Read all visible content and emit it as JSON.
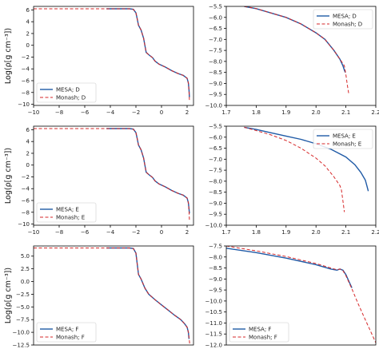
{
  "colors": {
    "mesa": "#1f5aa6",
    "monash": "#d62728",
    "axis": "#000000"
  },
  "chart_data": [
    {
      "type": "line",
      "panel": "D-left",
      "ylabel": "Log(ρ[g cm⁻³])",
      "xlim": [
        -10,
        2.5
      ],
      "ylim": [
        -10.2,
        6.6
      ],
      "xticks": [
        -10,
        -8,
        -6,
        -4,
        -2,
        0,
        2
      ],
      "xtick_labels": [
        "−10",
        "−8",
        "−6",
        "−4",
        "−2",
        "0",
        "2"
      ],
      "yticks": [
        -10,
        -8,
        -6,
        -4,
        -2,
        0,
        2,
        4,
        6
      ],
      "ytick_labels": [
        "−10",
        "−8",
        "−6",
        "−4",
        "−2",
        "0",
        "2",
        "4",
        "6"
      ],
      "legend_position": "lower-left",
      "series": [
        {
          "name": "MESA; D",
          "style": "solid",
          "x": [
            -4.3,
            -2.5,
            -2.2,
            -2.0,
            -1.9,
            -1.8,
            -1.6,
            -1.4,
            -1.2,
            -1.0,
            -0.7,
            -0.5,
            -0.2,
            0.3,
            0.8,
            1.3,
            1.7,
            2.0,
            2.1,
            2.15,
            2.18
          ],
          "y": [
            6.2,
            6.2,
            6.1,
            5.5,
            4.5,
            3.4,
            2.6,
            1.2,
            -1.2,
            -1.6,
            -2.1,
            -2.7,
            -3.2,
            -3.7,
            -4.3,
            -4.8,
            -5.1,
            -5.6,
            -6.4,
            -7.6,
            -8.8
          ]
        },
        {
          "name": "Monash; D",
          "style": "dashed",
          "x": [
            -10,
            -4.3,
            -2.5,
            -2.2,
            -2.0,
            -1.9,
            -1.8,
            -1.6,
            -1.4,
            -1.2,
            -1.0,
            -0.7,
            -0.5,
            -0.2,
            0.3,
            0.8,
            1.3,
            1.7,
            2.0,
            2.1,
            2.15,
            2.18
          ],
          "y": [
            6.2,
            6.2,
            6.2,
            6.1,
            5.5,
            4.5,
            3.4,
            2.6,
            1.2,
            -1.2,
            -1.6,
            -2.1,
            -2.7,
            -3.2,
            -3.7,
            -4.3,
            -4.8,
            -5.1,
            -5.6,
            -6.4,
            -7.8,
            -9.3
          ]
        }
      ]
    },
    {
      "type": "line",
      "panel": "D-right",
      "xlim": [
        1.7,
        2.2
      ],
      "ylim": [
        -10.0,
        -5.5
      ],
      "xticks": [
        1.7,
        1.8,
        1.9,
        2.0,
        2.1,
        2.2
      ],
      "xtick_labels": [
        "1.7",
        "1.8",
        "1.9",
        "2.0",
        "2.1",
        "2.2"
      ],
      "yticks": [
        -10.0,
        -9.5,
        -9.0,
        -8.5,
        -8.0,
        -7.5,
        -7.0,
        -6.5,
        -6.0,
        -5.5
      ],
      "ytick_labels": [
        "−10.0",
        "−9.5",
        "−9.0",
        "−8.5",
        "−8.0",
        "−7.5",
        "−7.0",
        "−6.5",
        "−6.0",
        "−5.5"
      ],
      "legend_position": "top-right",
      "series": [
        {
          "name": "MESA; D",
          "style": "solid",
          "x": [
            1.76,
            1.8,
            1.85,
            1.9,
            1.95,
            2.0,
            2.03,
            2.06,
            2.08,
            2.09,
            2.095,
            2.098
          ],
          "y": [
            -5.5,
            -5.6,
            -5.8,
            -6.0,
            -6.3,
            -6.7,
            -7.0,
            -7.5,
            -7.9,
            -8.2,
            -8.4,
            -8.5
          ]
        },
        {
          "name": "Monash; D",
          "style": "dashed",
          "x": [
            1.76,
            1.8,
            1.85,
            1.9,
            1.95,
            2.0,
            2.03,
            2.06,
            2.08,
            2.09,
            2.095,
            2.1,
            2.105,
            2.11
          ],
          "y": [
            -5.5,
            -5.6,
            -5.8,
            -6.0,
            -6.3,
            -6.7,
            -7.0,
            -7.5,
            -7.9,
            -8.1,
            -8.2,
            -8.6,
            -9.1,
            -9.5
          ]
        }
      ]
    },
    {
      "type": "line",
      "panel": "E-left",
      "ylabel": "Log(ρ[g cm⁻³])",
      "xlim": [
        -10,
        2.5
      ],
      "ylim": [
        -10.2,
        6.6
      ],
      "xticks": [
        -10,
        -8,
        -6,
        -4,
        -2,
        0,
        2
      ],
      "xtick_labels": [
        "−10",
        "−8",
        "−6",
        "−4",
        "−2",
        "0",
        "2"
      ],
      "yticks": [
        -10,
        -8,
        -6,
        -4,
        -2,
        0,
        2,
        4,
        6
      ],
      "ytick_labels": [
        "−10",
        "−8",
        "−6",
        "−4",
        "−2",
        "0",
        "2",
        "4",
        "6"
      ],
      "legend_position": "lower-left",
      "series": [
        {
          "name": "MESA; E",
          "style": "solid",
          "x": [
            -4.3,
            -2.5,
            -2.2,
            -2.0,
            -1.9,
            -1.8,
            -1.6,
            -1.4,
            -1.2,
            -1.0,
            -0.7,
            -0.5,
            -0.2,
            0.3,
            0.8,
            1.3,
            1.7,
            2.0,
            2.1,
            2.15,
            2.18
          ],
          "y": [
            6.2,
            6.2,
            6.1,
            5.5,
            4.5,
            3.4,
            2.6,
            1.2,
            -1.2,
            -1.6,
            -2.1,
            -2.7,
            -3.2,
            -3.7,
            -4.3,
            -4.8,
            -5.1,
            -5.6,
            -6.4,
            -7.4,
            -8.2
          ]
        },
        {
          "name": "Monash; E",
          "style": "dashed",
          "x": [
            -10,
            -4.3,
            -2.5,
            -2.2,
            -2.0,
            -1.9,
            -1.8,
            -1.6,
            -1.4,
            -1.2,
            -1.0,
            -0.7,
            -0.5,
            -0.2,
            0.3,
            0.8,
            1.3,
            1.7,
            2.0,
            2.1,
            2.15,
            2.18
          ],
          "y": [
            6.2,
            6.2,
            6.2,
            6.1,
            5.5,
            4.5,
            3.4,
            2.6,
            1.2,
            -1.2,
            -1.6,
            -2.1,
            -2.7,
            -3.2,
            -3.7,
            -4.3,
            -4.8,
            -5.1,
            -5.6,
            -6.4,
            -7.8,
            -9.3
          ]
        }
      ]
    },
    {
      "type": "line",
      "panel": "E-right",
      "xlim": [
        1.7,
        2.2
      ],
      "ylim": [
        -10.0,
        -5.5
      ],
      "xticks": [
        1.7,
        1.8,
        1.9,
        2.0,
        2.1,
        2.2
      ],
      "xtick_labels": [
        "1.7",
        "1.8",
        "1.9",
        "2.0",
        "2.1",
        "2.2"
      ],
      "yticks": [
        -10.0,
        -9.5,
        -9.0,
        -8.5,
        -8.0,
        -7.5,
        -7.0,
        -6.5,
        -6.0,
        -5.5
      ],
      "ytick_labels": [
        "−10.0",
        "−9.5",
        "−9.0",
        "−8.5",
        "−8.0",
        "−7.5",
        "−7.0",
        "−6.5",
        "−6.0",
        "−5.5"
      ],
      "legend_position": "top-right",
      "series": [
        {
          "name": "MESA; E",
          "style": "solid",
          "x": [
            1.76,
            1.8,
            1.85,
            1.9,
            1.95,
            2.0,
            2.05,
            2.1,
            2.13,
            2.15,
            2.165,
            2.17,
            2.175
          ],
          "y": [
            -5.55,
            -5.65,
            -5.8,
            -5.95,
            -6.1,
            -6.3,
            -6.55,
            -6.9,
            -7.25,
            -7.6,
            -7.95,
            -8.2,
            -8.45
          ]
        },
        {
          "name": "Monash; E",
          "style": "dashed",
          "x": [
            1.76,
            1.8,
            1.85,
            1.9,
            1.95,
            2.0,
            2.03,
            2.06,
            2.08,
            2.085,
            2.09,
            2.095
          ],
          "y": [
            -5.55,
            -5.7,
            -5.9,
            -6.15,
            -6.5,
            -6.95,
            -7.3,
            -7.8,
            -8.2,
            -8.4,
            -8.9,
            -9.4
          ]
        }
      ]
    },
    {
      "type": "line",
      "panel": "F-left",
      "ylabel": "Log(ρ[g cm⁻³])",
      "xlim": [
        -10,
        2.5
      ],
      "ylim": [
        -12.5,
        7.0
      ],
      "yticks": [
        -12.5,
        -10.0,
        -7.5,
        -5.0,
        -2.5,
        0.0,
        2.5,
        5.0
      ],
      "ytick_labels": [
        "−12.5",
        "−10.0",
        "−7.5",
        "−5.0",
        "−2.5",
        "0.0",
        "2.5",
        "5.0"
      ],
      "legend_position": "lower-left",
      "series": [
        {
          "name": "MESA; F",
          "style": "solid",
          "x": [
            -4.3,
            -2.5,
            -2.2,
            -2.0,
            -1.9,
            -1.8,
            -1.6,
            -1.3,
            -1.0,
            -0.5,
            0.0,
            0.5,
            1.0,
            1.5,
            1.8,
            2.0,
            2.1,
            2.15
          ],
          "y": [
            6.6,
            6.6,
            6.5,
            5.6,
            3.5,
            1.4,
            0.5,
            -1.3,
            -2.5,
            -3.6,
            -4.6,
            -5.6,
            -6.6,
            -7.5,
            -8.3,
            -9.0,
            -10.0,
            -11.3
          ]
        },
        {
          "name": "Monash; F",
          "style": "dashed",
          "x": [
            -10,
            -4.3,
            -2.5,
            -2.2,
            -2.0,
            -1.9,
            -1.8,
            -1.6,
            -1.3,
            -1.0,
            -0.5,
            0.0,
            0.5,
            1.0,
            1.5,
            1.8,
            2.0,
            2.1,
            2.15,
            2.2
          ],
          "y": [
            6.6,
            6.6,
            6.6,
            6.5,
            5.6,
            3.5,
            1.4,
            0.5,
            -1.3,
            -2.5,
            -3.6,
            -4.6,
            -5.6,
            -6.6,
            -7.5,
            -8.3,
            -9.0,
            -10.0,
            -11.0,
            -12.2
          ]
        }
      ]
    },
    {
      "type": "line",
      "panel": "F-right",
      "xlim": [
        1.7,
        2.2
      ],
      "ylim": [
        -12.0,
        -7.5
      ],
      "yticks": [
        -12.0,
        -11.5,
        -11.0,
        -10.5,
        -10.0,
        -9.5,
        -9.0,
        -8.5,
        -8.0,
        -7.5
      ],
      "ytick_labels": [
        "−12.0",
        "−11.5",
        "−11.0",
        "−10.5",
        "−10.0",
        "−9.5",
        "−9.0",
        "−8.5",
        "−8.0",
        "−7.5"
      ],
      "legend_position": "lower-left",
      "series": [
        {
          "name": "MESA; F",
          "style": "solid",
          "x": [
            1.7,
            1.8,
            1.9,
            2.0,
            2.05,
            2.07,
            2.08,
            2.09,
            2.1,
            2.11,
            2.12
          ],
          "y": [
            -7.6,
            -7.8,
            -8.05,
            -8.35,
            -8.55,
            -8.6,
            -8.55,
            -8.6,
            -8.8,
            -9.1,
            -9.4
          ]
        },
        {
          "name": "Monash; F",
          "style": "dashed",
          "x": [
            1.7,
            1.8,
            1.9,
            2.0,
            2.05,
            2.07,
            2.08,
            2.09,
            2.1,
            2.12,
            2.14,
            2.16,
            2.18,
            2.2
          ],
          "y": [
            -7.5,
            -7.72,
            -7.98,
            -8.3,
            -8.5,
            -8.58,
            -8.55,
            -8.62,
            -8.85,
            -9.45,
            -10.1,
            -10.7,
            -11.3,
            -11.9
          ]
        }
      ]
    }
  ]
}
